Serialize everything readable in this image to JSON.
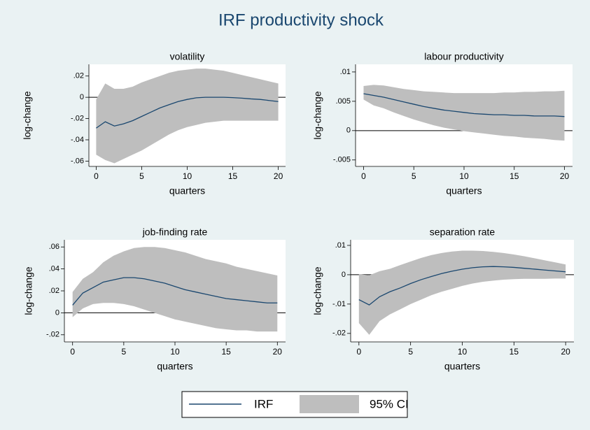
{
  "title": "IRF productivity shock",
  "legend": {
    "line": {
      "name": "IRF",
      "color": "#1a476f"
    },
    "band": {
      "name": "95% CI",
      "color": "#bebebe"
    }
  },
  "chart_data": [
    {
      "type": "irf",
      "title": "volatility",
      "xlabel": "quarters",
      "ylabel": "log-change",
      "zero_line": true,
      "x": [
        0,
        1,
        2,
        3,
        4,
        5,
        6,
        7,
        8,
        9,
        10,
        11,
        12,
        13,
        14,
        15,
        16,
        17,
        18,
        19,
        20
      ],
      "irf": [
        -0.029,
        -0.023,
        -0.027,
        -0.025,
        -0.022,
        -0.018,
        -0.014,
        -0.01,
        -0.007,
        -0.004,
        -0.002,
        -0.0005,
        0,
        0,
        0,
        -0.0003,
        -0.0008,
        -0.0015,
        -0.002,
        -0.003,
        -0.004
      ],
      "ci_upper": [
        -0.002,
        0.013,
        0.008,
        0.008,
        0.01,
        0.014,
        0.017,
        0.02,
        0.023,
        0.025,
        0.026,
        0.027,
        0.027,
        0.026,
        0.025,
        0.023,
        0.021,
        0.019,
        0.017,
        0.015,
        0.013
      ],
      "ci_lower": [
        -0.054,
        -0.059,
        -0.062,
        -0.058,
        -0.054,
        -0.05,
        -0.045,
        -0.04,
        -0.035,
        -0.031,
        -0.028,
        -0.026,
        -0.024,
        -0.023,
        -0.022,
        -0.022,
        -0.022,
        -0.022,
        -0.022,
        -0.022,
        -0.022
      ],
      "xlim": [
        -0.8,
        20.8
      ],
      "ylim": [
        -0.065,
        0.031
      ],
      "xticks": [
        0,
        5,
        10,
        15,
        20
      ],
      "yticks": [
        {
          "value": 0.02,
          "label": ".02"
        },
        0,
        {
          "value": -0.02,
          "label": "-.02"
        },
        {
          "value": -0.04,
          "label": "-.04"
        },
        {
          "value": -0.06,
          "label": "-.06"
        }
      ]
    },
    {
      "type": "irf",
      "title": "labour productivity",
      "xlabel": "quarters",
      "ylabel": "log-change",
      "zero_line": true,
      "x": [
        0,
        1,
        2,
        3,
        4,
        5,
        6,
        7,
        8,
        9,
        10,
        11,
        12,
        13,
        14,
        15,
        16,
        17,
        18,
        19,
        20
      ],
      "irf": [
        0.0063,
        0.006,
        0.0057,
        0.0053,
        0.0049,
        0.0045,
        0.0041,
        0.0038,
        0.0035,
        0.0033,
        0.0031,
        0.0029,
        0.0028,
        0.0027,
        0.0027,
        0.0026,
        0.0026,
        0.0025,
        0.0025,
        0.0025,
        0.0024
      ],
      "ci_upper": [
        0.0076,
        0.0078,
        0.0077,
        0.0074,
        0.0071,
        0.0069,
        0.0067,
        0.0066,
        0.0065,
        0.0064,
        0.0064,
        0.0064,
        0.0064,
        0.0064,
        0.0065,
        0.0065,
        0.0066,
        0.0066,
        0.0067,
        0.0067,
        0.0068
      ],
      "ci_lower": [
        0.0053,
        0.0043,
        0.0038,
        0.0031,
        0.0025,
        0.0019,
        0.0014,
        0.0009,
        0.0005,
        0.0002,
        -0.0001,
        -0.0003,
        -0.0005,
        -0.0007,
        -0.0009,
        -0.001,
        -0.0012,
        -0.0013,
        -0.0014,
        -0.0016,
        -0.0017
      ],
      "xlim": [
        -0.8,
        20.8
      ],
      "ylim": [
        -0.0061,
        0.0113
      ],
      "xticks": [
        0,
        5,
        10,
        15,
        20
      ],
      "yticks": [
        {
          "value": 0.01,
          "label": ".01"
        },
        {
          "value": 0.005,
          "label": ".005"
        },
        0,
        {
          "value": -0.005,
          "label": "-.005"
        }
      ]
    },
    {
      "type": "irf",
      "title": "job-finding rate",
      "xlabel": "quarters",
      "ylabel": "log-change",
      "zero_line": true,
      "x": [
        0,
        1,
        2,
        3,
        4,
        5,
        6,
        7,
        8,
        9,
        10,
        11,
        12,
        13,
        14,
        15,
        16,
        17,
        18,
        19,
        20
      ],
      "irf": [
        0.007,
        0.018,
        0.023,
        0.028,
        0.03,
        0.032,
        0.032,
        0.031,
        0.029,
        0.027,
        0.024,
        0.021,
        0.019,
        0.017,
        0.015,
        0.013,
        0.012,
        0.011,
        0.01,
        0.009,
        0.009
      ],
      "ci_upper": [
        0.019,
        0.031,
        0.037,
        0.046,
        0.052,
        0.056,
        0.059,
        0.06,
        0.06,
        0.059,
        0.057,
        0.055,
        0.052,
        0.049,
        0.047,
        0.045,
        0.042,
        0.04,
        0.038,
        0.036,
        0.034
      ],
      "ci_lower": [
        -0.004,
        0.004,
        0.008,
        0.009,
        0.009,
        0.008,
        0.006,
        0.003,
        -0.0001,
        -0.003,
        -0.006,
        -0.008,
        -0.01,
        -0.012,
        -0.014,
        -0.015,
        -0.016,
        -0.016,
        -0.017,
        -0.017,
        -0.017
      ],
      "xlim": [
        -0.8,
        20.8
      ],
      "ylim": [
        -0.0265,
        0.0665
      ],
      "xticks": [
        0,
        5,
        10,
        15,
        20
      ],
      "yticks": [
        {
          "value": 0.06,
          "label": ".06"
        },
        {
          "value": 0.04,
          "label": ".04"
        },
        {
          "value": 0.02,
          "label": ".02"
        },
        0,
        {
          "value": -0.02,
          "label": "-.02"
        }
      ]
    },
    {
      "type": "irf",
      "title": "separation rate",
      "xlabel": "quarters",
      "ylabel": "log-change",
      "zero_line": true,
      "x": [
        0,
        1,
        2,
        3,
        4,
        5,
        6,
        7,
        8,
        9,
        10,
        11,
        12,
        13,
        14,
        15,
        16,
        17,
        18,
        19,
        20
      ],
      "irf": [
        -0.0085,
        -0.0103,
        -0.0075,
        -0.0058,
        -0.0045,
        -0.003,
        -0.0017,
        -0.0006,
        0.0004,
        0.0012,
        0.0019,
        0.0024,
        0.0027,
        0.0028,
        0.0027,
        0.0025,
        0.0022,
        0.0019,
        0.0016,
        0.0013,
        0.001
      ],
      "ci_upper": [
        0.0002,
        -0.0002,
        0.0012,
        0.002,
        0.0033,
        0.0045,
        0.0057,
        0.0067,
        0.0074,
        0.0079,
        0.0082,
        0.0082,
        0.0081,
        0.0078,
        0.0074,
        0.0069,
        0.0063,
        0.0056,
        0.0049,
        0.0042,
        0.0035
      ],
      "ci_lower": [
        -0.0165,
        -0.0205,
        -0.0158,
        -0.0135,
        -0.0118,
        -0.01,
        -0.0085,
        -0.007,
        -0.0058,
        -0.0048,
        -0.0038,
        -0.003,
        -0.0024,
        -0.002,
        -0.0017,
        -0.0015,
        -0.0014,
        -0.0014,
        -0.0014,
        -0.0013,
        -0.0013
      ],
      "xlim": [
        -0.8,
        20.8
      ],
      "ylim": [
        -0.0229,
        0.0119
      ],
      "xticks": [
        0,
        5,
        10,
        15,
        20
      ],
      "yticks": [
        {
          "value": 0.01,
          "label": ".01"
        },
        0,
        {
          "value": -0.01,
          "label": "-.01"
        },
        {
          "value": -0.02,
          "label": "-.02"
        }
      ]
    }
  ]
}
